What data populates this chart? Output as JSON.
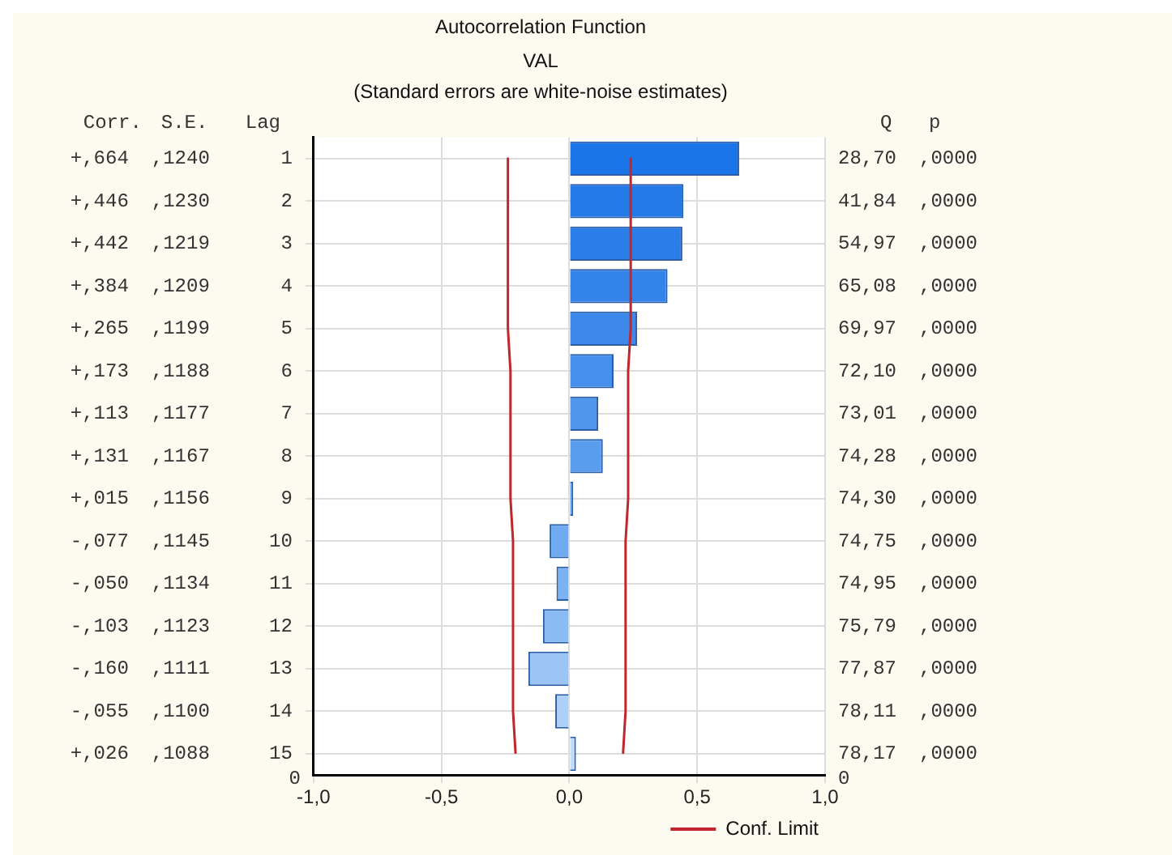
{
  "chart_data": {
    "type": "bar",
    "orientation": "horizontal",
    "title": "Autocorrelation Function",
    "subtitle": "VAL",
    "categories": [
      "1",
      "2",
      "3",
      "4",
      "5",
      "6",
      "7",
      "8",
      "9",
      "10",
      "11",
      "12",
      "13",
      "14",
      "15"
    ],
    "series": [
      {
        "colors": [
          "#1a75e8",
          "#2479e8",
          "#2b7ee9",
          "#3383ea",
          "#3c89eb",
          "#468fec",
          "#5096ed",
          "#5a9cee",
          "#64a3ef",
          "#70aaf0",
          "#7cb2f2",
          "#8abbf3",
          "#9ac5f5",
          "#acd0f7",
          "#c0dcf9"
        ],
        "values": [
          0.664,
          0.446,
          0.442,
          0.384,
          0.265,
          0.173,
          0.113,
          0.131,
          0.015,
          -0.077,
          -0.05,
          -0.103,
          -0.16,
          -0.055,
          0.026
        ]
      },
      {
        "type": "line",
        "name": "Conf. Limit",
        "color": "#c0272d",
        "values": [
          0.24,
          0.24,
          0.24,
          0.24,
          0.24,
          0.23,
          0.23,
          0.23,
          0.23,
          0.22,
          0.22,
          0.22,
          0.22,
          0.22,
          0.21
        ]
      },
      {
        "type": "line",
        "color": "#c0272d",
        "values": [
          -0.24,
          -0.24,
          -0.24,
          -0.24,
          -0.24,
          -0.23,
          -0.23,
          -0.23,
          -0.23,
          -0.22,
          -0.22,
          -0.22,
          -0.22,
          -0.22,
          -0.21
        ]
      }
    ],
    "xlim": [
      -1,
      1
    ],
    "xticks": [
      {
        "value": -1,
        "label": "-1,0"
      },
      {
        "value": -0.5,
        "label": "-0,5"
      },
      {
        "value": 0,
        "label": "0,0"
      },
      {
        "value": 0.5,
        "label": "0,5"
      },
      {
        "value": 1,
        "label": "1,0"
      }
    ],
    "grid": true,
    "legend": "bottom right",
    "line_style": "solid",
    "marker": "none",
    "annotations": [
      "(Standard errors are white-noise estimates)",
      "Lag",
      "Corr.",
      "S.E.",
      "Q",
      "p",
      "0",
      "0",
      "+,664",
      ",1240",
      "28,70",
      ",0000",
      "+,446",
      ",1230",
      "41,84",
      ",0000",
      "+,442",
      ",1219",
      "54,97",
      ",0000",
      "+,384",
      ",1209",
      "65,08",
      ",0000",
      "+,265",
      ",1199",
      "69,97",
      ",0000",
      "+,173",
      ",1188",
      "72,10",
      ",0000",
      "+,113",
      ",1177",
      "73,01",
      ",0000",
      "+,131",
      ",1167",
      "74,28",
      ",0000",
      "+,015",
      ",1156",
      "74,30",
      ",0000",
      "-,077",
      ",1145",
      "74,75",
      ",0000",
      "-,050",
      ",1134",
      "74,95",
      ",0000",
      "-,103",
      ",1123",
      "75,79",
      ",0000",
      "-,160",
      ",1111",
      "77,87",
      ",0000",
      "-,055",
      ",1100",
      "78,11",
      ",0000",
      "+,026",
      ",1088",
      "78,17",
      ",0000"
    ]
  }
}
